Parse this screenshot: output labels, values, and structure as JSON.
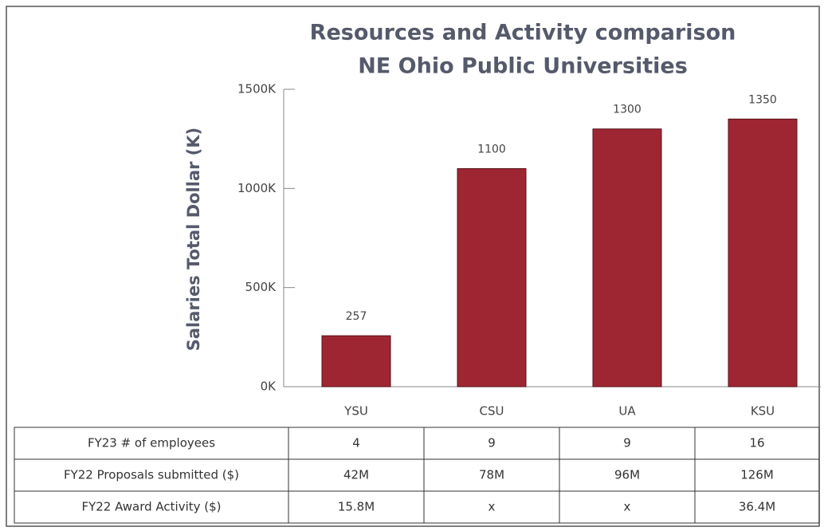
{
  "chart_data": {
    "type": "bar",
    "title": [
      "Resources and Activity comparison",
      "NE Ohio Public Universities"
    ],
    "y_label": "Salaries Total Dollar (K)",
    "categories": [
      "YSU",
      "CSU",
      "UA",
      "KSU"
    ],
    "values": [
      257,
      1100,
      1300,
      1350
    ],
    "color": "#9e2633",
    "ylim": [
      0,
      1500
    ],
    "yticks": [
      {
        "value": 0,
        "label": "0K"
      },
      {
        "value": 500,
        "label": "500K"
      },
      {
        "value": 1000,
        "label": "1000K"
      },
      {
        "value": 1500,
        "label": "1500K"
      }
    ],
    "grid": false
  },
  "table": {
    "rows": [
      [
        "FY23 # of employees",
        "4",
        "9",
        "9",
        "16"
      ],
      [
        "FY22 Proposals submitted ($)",
        "42M",
        "78M",
        "96M",
        "126M"
      ],
      [
        "FY22 Award Activity ($)",
        "15.8M",
        "x",
        "x",
        "36.4M"
      ]
    ]
  }
}
